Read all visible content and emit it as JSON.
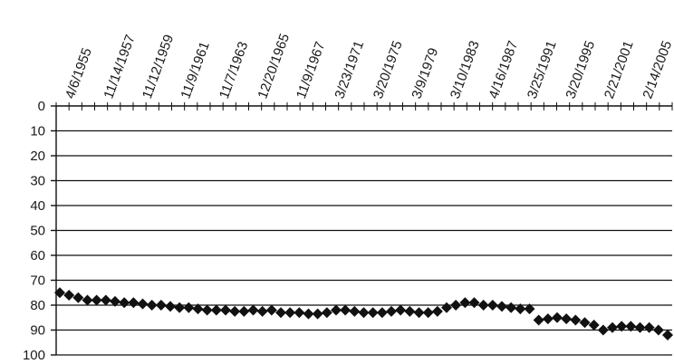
{
  "chart_data": {
    "type": "scatter",
    "title": "",
    "xlabel": "",
    "ylabel": "",
    "y_reversed": true,
    "ylim": [
      0,
      100
    ],
    "y_ticks": [
      0,
      10,
      20,
      30,
      40,
      50,
      60,
      70,
      80,
      90,
      100
    ],
    "grid": true,
    "x_tick_labels": [
      "4/6/1955",
      "11/14/1957",
      "11/12/1959",
      "11/9/1961",
      "11/7/1963",
      "12/20/1965",
      "11/9/1967",
      "3/23/1971",
      "3/20/1975",
      "3/9/1979",
      "3/10/1983",
      "4/16/1987",
      "3/25/1991",
      "3/20/1995",
      "2/21/2001",
      "2/14/2005"
    ],
    "minor_tick_count": 48,
    "series": [
      {
        "marker": "diamond",
        "color": "#111111",
        "values": [
          75,
          76,
          77,
          78,
          78,
          78,
          78.5,
          79,
          79,
          79.5,
          80,
          80,
          80.5,
          81,
          81,
          81.5,
          82,
          82,
          82,
          82.5,
          82.5,
          82,
          82.5,
          82,
          83,
          83,
          83,
          83.5,
          83.5,
          83,
          82,
          82,
          82.5,
          83,
          83,
          83,
          82.5,
          82,
          82.5,
          83,
          83,
          82.5,
          81,
          80,
          79,
          79,
          80,
          80,
          80.5,
          81,
          81.5,
          81.5,
          86,
          85.5,
          85,
          85.5,
          86,
          87,
          88,
          90,
          89,
          88.5,
          88.5,
          89,
          89,
          90,
          92
        ]
      }
    ]
  }
}
